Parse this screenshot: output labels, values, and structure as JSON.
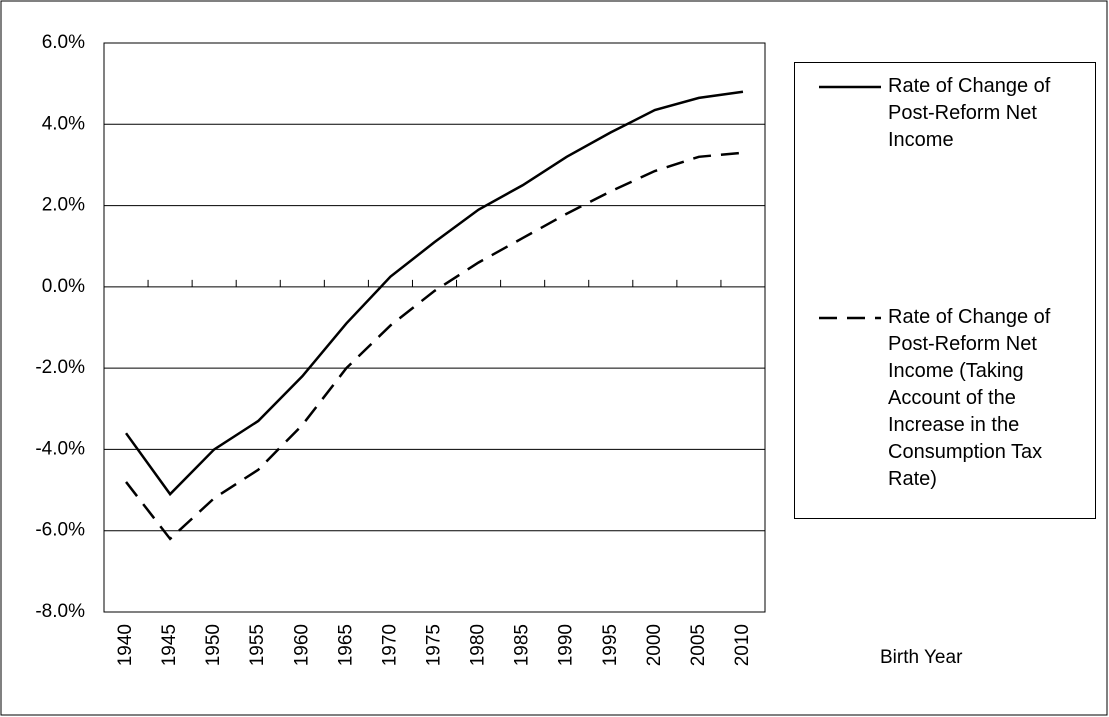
{
  "chart_data": {
    "type": "line",
    "x_label": "Birth Year",
    "categories": [
      "1940",
      "1945",
      "1950",
      "1955",
      "1960",
      "1965",
      "1970",
      "1975",
      "1980",
      "1985",
      "1990",
      "1995",
      "2000",
      "2005",
      "2010"
    ],
    "series": [
      {
        "name": "Rate of Change of Post-Reform Net Income",
        "color": "#000000",
        "line_style": "solid",
        "values": [
          -3.6,
          -5.1,
          -4.0,
          -3.3,
          -2.2,
          -0.9,
          0.25,
          1.1,
          1.9,
          2.5,
          3.2,
          3.8,
          4.35,
          4.65,
          4.8
        ]
      },
      {
        "name": "Rate of Change of Post-Reform Net Income (Taking Account of the Increase in the Consumption Tax Rate)",
        "color": "#000000",
        "line_style": "dashed",
        "values": [
          -4.8,
          -6.2,
          -5.2,
          -4.5,
          -3.4,
          -2.0,
          -0.95,
          -0.1,
          0.6,
          1.2,
          1.8,
          2.35,
          2.85,
          3.2,
          3.3
        ]
      }
    ],
    "ylim": [
      -8,
      6
    ],
    "yticks": [
      {
        "value": -8,
        "label": "-8.0%"
      },
      {
        "value": -6,
        "label": "-6.0%"
      },
      {
        "value": -4,
        "label": "-4.0%"
      },
      {
        "value": -2,
        "label": "-2.0%"
      },
      {
        "value": 0,
        "label": "0.0%"
      },
      {
        "value": 2,
        "label": "2.0%"
      },
      {
        "value": 4,
        "label": "4.0%"
      },
      {
        "value": 6,
        "label": "6.0%"
      }
    ],
    "grid": true,
    "legend": "right"
  }
}
